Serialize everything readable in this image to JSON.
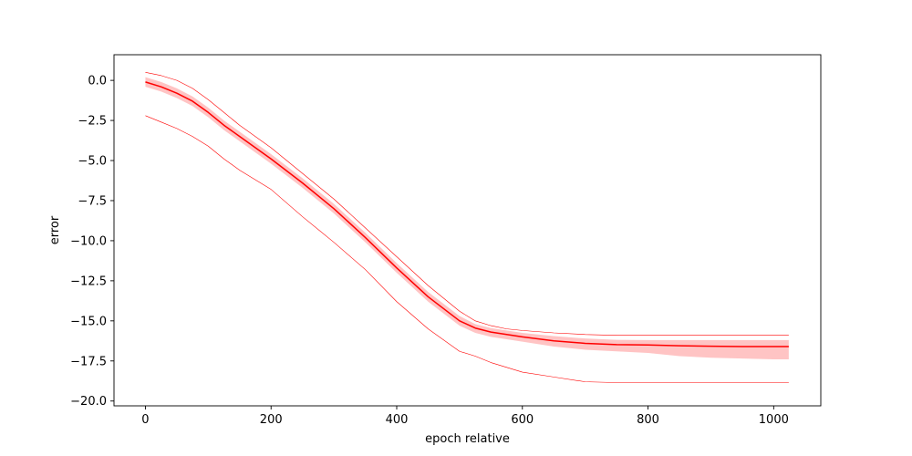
{
  "chart_data": {
    "type": "line",
    "title": "",
    "xlabel": "epoch relative",
    "ylabel": "error",
    "xlim": [
      -50,
      1075
    ],
    "ylim": [
      -20.3,
      1.6
    ],
    "grid": false,
    "legend": "none",
    "x_ticks": [
      0,
      200,
      400,
      600,
      800,
      1000
    ],
    "x_tick_labels": [
      "0",
      "200",
      "400",
      "600",
      "800",
      "1000"
    ],
    "y_ticks": [
      0.0,
      -2.5,
      -5.0,
      -7.5,
      -10.0,
      -12.5,
      -15.0,
      -17.5,
      -20.0
    ],
    "y_tick_labels": [
      "0.0",
      "−2.5",
      "−5.0",
      "−7.5",
      "−10.0",
      "−12.5",
      "−15.0",
      "−17.5",
      "−20.0"
    ],
    "colors": {
      "line": "#ff0000",
      "band": "#ffc4c4"
    },
    "x": [
      0,
      25,
      50,
      75,
      100,
      125,
      150,
      200,
      250,
      300,
      350,
      400,
      450,
      500,
      525,
      550,
      575,
      600,
      650,
      700,
      750,
      800,
      850,
      900,
      950,
      1000,
      1024
    ],
    "series": [
      {
        "role": "max",
        "values": [
          0.5,
          0.3,
          0.0,
          -0.5,
          -1.2,
          -2.0,
          -2.8,
          -4.2,
          -5.8,
          -7.4,
          -9.2,
          -11.0,
          -12.8,
          -14.4,
          -15.0,
          -15.3,
          -15.5,
          -15.6,
          -15.75,
          -15.85,
          -15.9,
          -15.9,
          -15.9,
          -15.9,
          -15.9,
          -15.9,
          -15.9
        ]
      },
      {
        "role": "mean",
        "values": [
          -0.1,
          -0.4,
          -0.8,
          -1.3,
          -2.0,
          -2.8,
          -3.5,
          -4.9,
          -6.4,
          -8.0,
          -9.8,
          -11.7,
          -13.5,
          -15.0,
          -15.45,
          -15.7,
          -15.85,
          -16.0,
          -16.25,
          -16.4,
          -16.48,
          -16.5,
          -16.55,
          -16.58,
          -16.6,
          -16.6,
          -16.6
        ]
      },
      {
        "role": "band_upper",
        "values": [
          0.2,
          -0.1,
          -0.5,
          -1.0,
          -1.7,
          -2.5,
          -3.2,
          -4.6,
          -6.1,
          -7.7,
          -9.5,
          -11.4,
          -13.2,
          -14.7,
          -15.2,
          -15.45,
          -15.6,
          -15.75,
          -15.95,
          -16.1,
          -16.18,
          -16.2,
          -16.2,
          -16.2,
          -16.2,
          -16.2,
          -16.2
        ]
      },
      {
        "role": "band_lower",
        "values": [
          -0.4,
          -0.7,
          -1.1,
          -1.6,
          -2.3,
          -3.1,
          -3.8,
          -5.2,
          -6.7,
          -8.3,
          -10.1,
          -12.0,
          -13.8,
          -15.3,
          -15.75,
          -16.0,
          -16.15,
          -16.3,
          -16.6,
          -16.8,
          -16.9,
          -17.0,
          -17.2,
          -17.3,
          -17.35,
          -17.4,
          -17.4
        ]
      },
      {
        "role": "min",
        "values": [
          -2.2,
          -2.6,
          -3.0,
          -3.5,
          -4.1,
          -4.9,
          -5.6,
          -6.8,
          -8.5,
          -10.1,
          -11.8,
          -13.8,
          -15.5,
          -16.9,
          -17.2,
          -17.6,
          -17.9,
          -18.2,
          -18.5,
          -18.8,
          -18.85,
          -18.85,
          -18.85,
          -18.85,
          -18.85,
          -18.85,
          -18.85
        ]
      }
    ]
  }
}
